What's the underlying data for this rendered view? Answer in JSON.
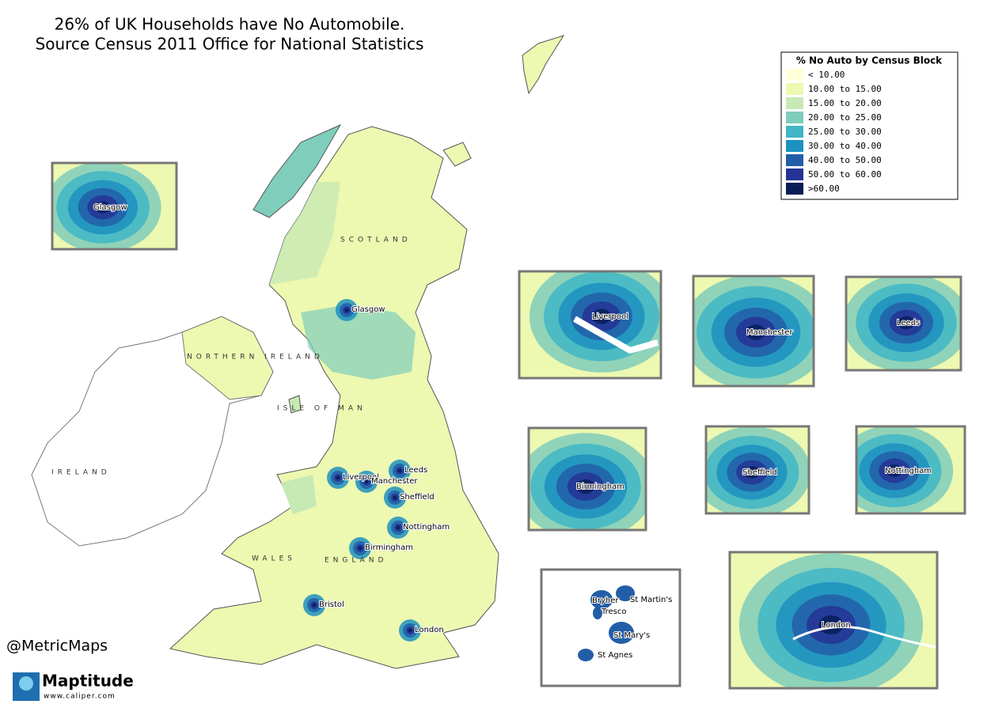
{
  "title": {
    "line1": "26% of UK Households have No Automobile.",
    "line2": "Source Census 2011 Office for National Statistics"
  },
  "legend": {
    "title": "% No Auto by Census Block",
    "items": [
      {
        "label": "< 10.00",
        "color": "#ffffd9"
      },
      {
        "label": "10.00 to 15.00",
        "color": "#edf8b1"
      },
      {
        "label": "15.00 to 20.00",
        "color": "#c7e9b4"
      },
      {
        "label": "20.00 to 25.00",
        "color": "#7fcdbb"
      },
      {
        "label": "25.00 to 30.00",
        "color": "#41b6c4"
      },
      {
        "label": "30.00 to 40.00",
        "color": "#1d91c0"
      },
      {
        "label": "40.00 to 50.00",
        "color": "#225ea8"
      },
      {
        "label": "50.00 to 60.00",
        "color": "#253494"
      },
      {
        "label": ">60.00",
        "color": "#081d58"
      }
    ]
  },
  "main_map": {
    "regions": [
      "SCOTLAND",
      "NORTHERN IRELAND",
      "ISLE OF MAN",
      "IRELAND",
      "WALES",
      "ENGLAND"
    ],
    "cities": [
      "Glasgow",
      "Liverpool",
      "Leeds",
      "Manchester",
      "Sheffield",
      "Nottingham",
      "Birmingham",
      "Bristol",
      "London"
    ]
  },
  "insets": [
    {
      "labels": [
        "Glasgow"
      ]
    },
    {
      "labels": [
        "Liverpool"
      ]
    },
    {
      "labels": [
        "Manchester"
      ]
    },
    {
      "labels": [
        "Leeds"
      ]
    },
    {
      "labels": [
        "Birmingham"
      ]
    },
    {
      "labels": [
        "Sheffield"
      ]
    },
    {
      "labels": [
        "Nottingham"
      ]
    },
    {
      "labels": [
        "Bryher",
        "Tresco",
        "St Martin's",
        "St Mary's",
        "St Agnes"
      ]
    },
    {
      "labels": [
        "London"
      ]
    }
  ],
  "footer": {
    "handle": "@MetricMaps",
    "logo": "Maptitude",
    "website": "www.caliper.com"
  }
}
